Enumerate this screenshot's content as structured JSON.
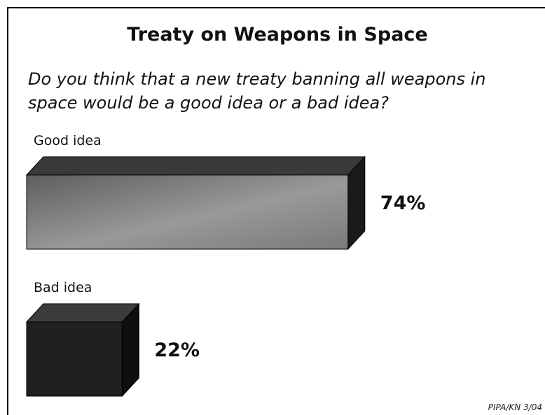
{
  "title": "Treaty on Weapons in Space",
  "question": "Do you think that a new treaty banning all weapons in space would be a good idea or a bad idea?",
  "source": "PIPA/KN 3/04",
  "colors": {
    "good_front": "#8a8a8a",
    "good_top": "#3a3a3a",
    "good_side": "#1a1a1a",
    "bad_front": "#202020",
    "bad_top": "#3c3c3c",
    "bad_side": "#0f0f0f"
  },
  "chart_data": {
    "type": "bar",
    "orientation": "horizontal",
    "categories": [
      "Good idea",
      "Bad idea"
    ],
    "values": [
      74,
      22
    ],
    "value_labels": [
      "74%",
      "22%"
    ],
    "unit": "%",
    "xlim": [
      0,
      100
    ],
    "style": "3d"
  }
}
